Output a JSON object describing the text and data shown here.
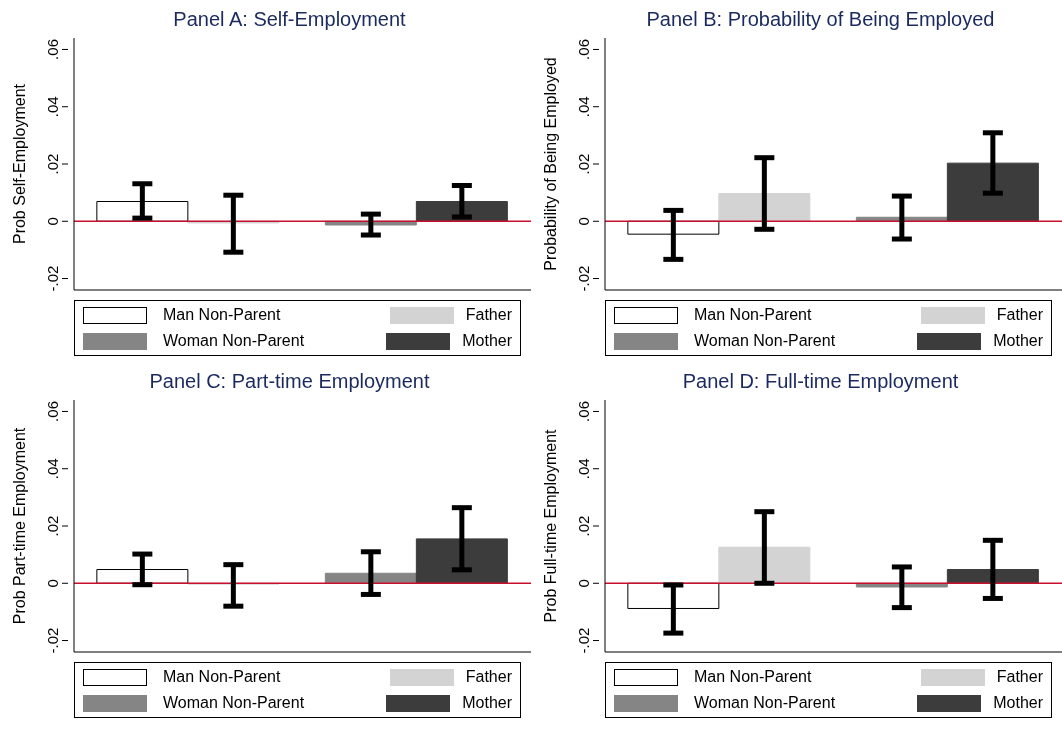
{
  "chart_data": [
    {
      "type": "bar",
      "title": "Panel A: Self-Employment",
      "ylabel": "Prob Self-Employment",
      "categories": [
        null,
        null
      ],
      "ylim": [
        -0.024,
        0.064
      ],
      "yticks": [
        {
          "value": -0.02,
          "label": "-.02"
        },
        {
          "value": 0,
          "label": "0"
        },
        {
          "value": 0.02,
          "label": ".02"
        },
        {
          "value": 0.04,
          "label": ".04"
        },
        {
          "value": 0.06,
          "label": ".06"
        }
      ],
      "tick_labels": "y",
      "legend": "bottom",
      "ref_lines": [
        {
          "axis": "y",
          "value": 0,
          "color": "#c8102e"
        }
      ],
      "series": [
        {
          "name": "Man Non-Parent",
          "color": "#ffffff",
          "values": [
            0.0069,
            null
          ],
          "errors": [
            [
              0.0011,
              0.0131
            ],
            null
          ]
        },
        {
          "name": "Father",
          "color": "#d3d3d3",
          "values": [
            -0.0006,
            null
          ],
          "errors": [
            [
              -0.0108,
              0.0091
            ],
            null
          ]
        },
        {
          "name": "Woman Non-Parent",
          "color": "#858585",
          "values": [
            null,
            -0.0013
          ],
          "errors": [
            null,
            [
              -0.0048,
              0.0025
            ]
          ]
        },
        {
          "name": "Mother",
          "color": "#3c3c3c",
          "values": [
            null,
            0.0069
          ],
          "errors": [
            null,
            [
              0.0015,
              0.0125
            ]
          ]
        }
      ]
    },
    {
      "type": "bar",
      "title": "Panel B: Probability of Being Employed",
      "ylabel": "Probability of Being Employed",
      "categories": [
        null,
        null
      ],
      "ylim": [
        -0.024,
        0.064
      ],
      "yticks": [
        {
          "value": -0.02,
          "label": "-.02"
        },
        {
          "value": 0,
          "label": "0"
        },
        {
          "value": 0.02,
          "label": ".02"
        },
        {
          "value": 0.04,
          "label": ".04"
        },
        {
          "value": 0.06,
          "label": ".06"
        }
      ],
      "tick_labels": "y",
      "legend": "bottom",
      "ref_lines": [
        {
          "axis": "y",
          "value": 0,
          "color": "#c8102e"
        }
      ],
      "series": [
        {
          "name": "Man Non-Parent",
          "color": "#ffffff",
          "values": [
            -0.0045,
            null
          ],
          "errors": [
            [
              -0.0133,
              0.0038
            ],
            null
          ]
        },
        {
          "name": "Father",
          "color": "#d3d3d3",
          "values": [
            0.0097,
            null
          ],
          "errors": [
            [
              -0.0028,
              0.0222
            ],
            null
          ]
        },
        {
          "name": "Woman Non-Parent",
          "color": "#858585",
          "values": [
            null,
            0.0014
          ],
          "errors": [
            null,
            [
              -0.0062,
              0.0088
            ]
          ]
        },
        {
          "name": "Mother",
          "color": "#3c3c3c",
          "values": [
            null,
            0.0203
          ],
          "errors": [
            null,
            [
              0.0098,
              0.0309
            ]
          ]
        }
      ]
    },
    {
      "type": "bar",
      "title": "Panel C: Part-time Employment",
      "ylabel": "Prob Part-time Employment",
      "categories": [
        null,
        null
      ],
      "ylim": [
        -0.024,
        0.064
      ],
      "yticks": [
        {
          "value": -0.02,
          "label": "-.02"
        },
        {
          "value": 0,
          "label": "0"
        },
        {
          "value": 0.02,
          "label": ".02"
        },
        {
          "value": 0.04,
          "label": ".04"
        },
        {
          "value": 0.06,
          "label": ".06"
        }
      ],
      "tick_labels": "y",
      "legend": "bottom",
      "ref_lines": [
        {
          "axis": "y",
          "value": 0,
          "color": "#c8102e"
        }
      ],
      "series": [
        {
          "name": "Man Non-Parent",
          "color": "#ffffff",
          "values": [
            0.0048,
            null
          ],
          "errors": [
            [
              -0.0005,
              0.0102
            ],
            null
          ]
        },
        {
          "name": "Father",
          "color": "#d3d3d3",
          "values": [
            -0.0003,
            null
          ],
          "errors": [
            [
              -0.008,
              0.0065
            ],
            null
          ]
        },
        {
          "name": "Woman Non-Parent",
          "color": "#858585",
          "values": [
            null,
            0.0035
          ],
          "errors": [
            null,
            [
              -0.0039,
              0.011
            ]
          ]
        },
        {
          "name": "Mother",
          "color": "#3c3c3c",
          "values": [
            null,
            0.0155
          ],
          "errors": [
            null,
            [
              0.0047,
              0.0264
            ]
          ]
        }
      ]
    },
    {
      "type": "bar",
      "title": "Panel D: Full-time Employment",
      "ylabel": "Prob Full-time Employment",
      "categories": [
        null,
        null
      ],
      "ylim": [
        -0.024,
        0.064
      ],
      "yticks": [
        {
          "value": -0.02,
          "label": "-.02"
        },
        {
          "value": 0,
          "label": "0"
        },
        {
          "value": 0.02,
          "label": ".02"
        },
        {
          "value": 0.04,
          "label": ".04"
        },
        {
          "value": 0.06,
          "label": ".06"
        }
      ],
      "tick_labels": "y",
      "legend": "bottom",
      "ref_lines": [
        {
          "axis": "y",
          "value": 0,
          "color": "#c8102e"
        }
      ],
      "series": [
        {
          "name": "Man Non-Parent",
          "color": "#ffffff",
          "values": [
            -0.0088,
            null
          ],
          "errors": [
            [
              -0.0174,
              -0.0006
            ],
            null
          ]
        },
        {
          "name": "Father",
          "color": "#d3d3d3",
          "values": [
            0.0126,
            null
          ],
          "errors": [
            [
              0,
              0.025
            ],
            null
          ]
        },
        {
          "name": "Woman Non-Parent",
          "color": "#858585",
          "values": [
            null,
            -0.0013
          ],
          "errors": [
            null,
            [
              -0.0085,
              0.0057
            ]
          ]
        },
        {
          "name": "Mother",
          "color": "#3c3c3c",
          "values": [
            null,
            0.0048
          ],
          "errors": [
            null,
            [
              -0.0053,
              0.015
            ]
          ]
        }
      ]
    }
  ]
}
